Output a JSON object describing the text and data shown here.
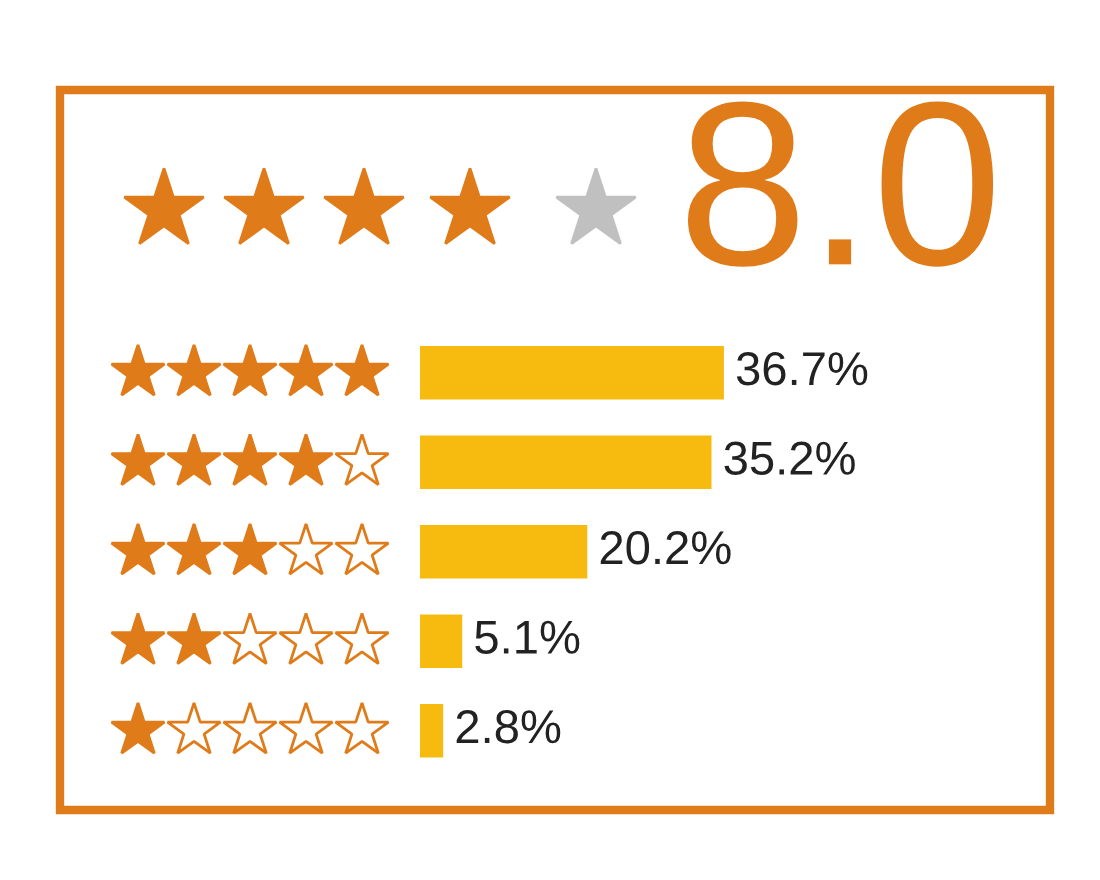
{
  "chart_data": {
    "type": "bar",
    "orientation": "horizontal",
    "categories": [
      null,
      null,
      null,
      null,
      null
    ],
    "values": [
      36.7,
      35.2,
      20.2,
      5.1,
      2.8
    ],
    "value_labels": [
      "36.7%",
      "35.2%",
      "20.2%",
      "5.1%",
      "2.8%"
    ],
    "color": "#f7bb0f",
    "annotations": [
      "8.0"
    ]
  }
}
